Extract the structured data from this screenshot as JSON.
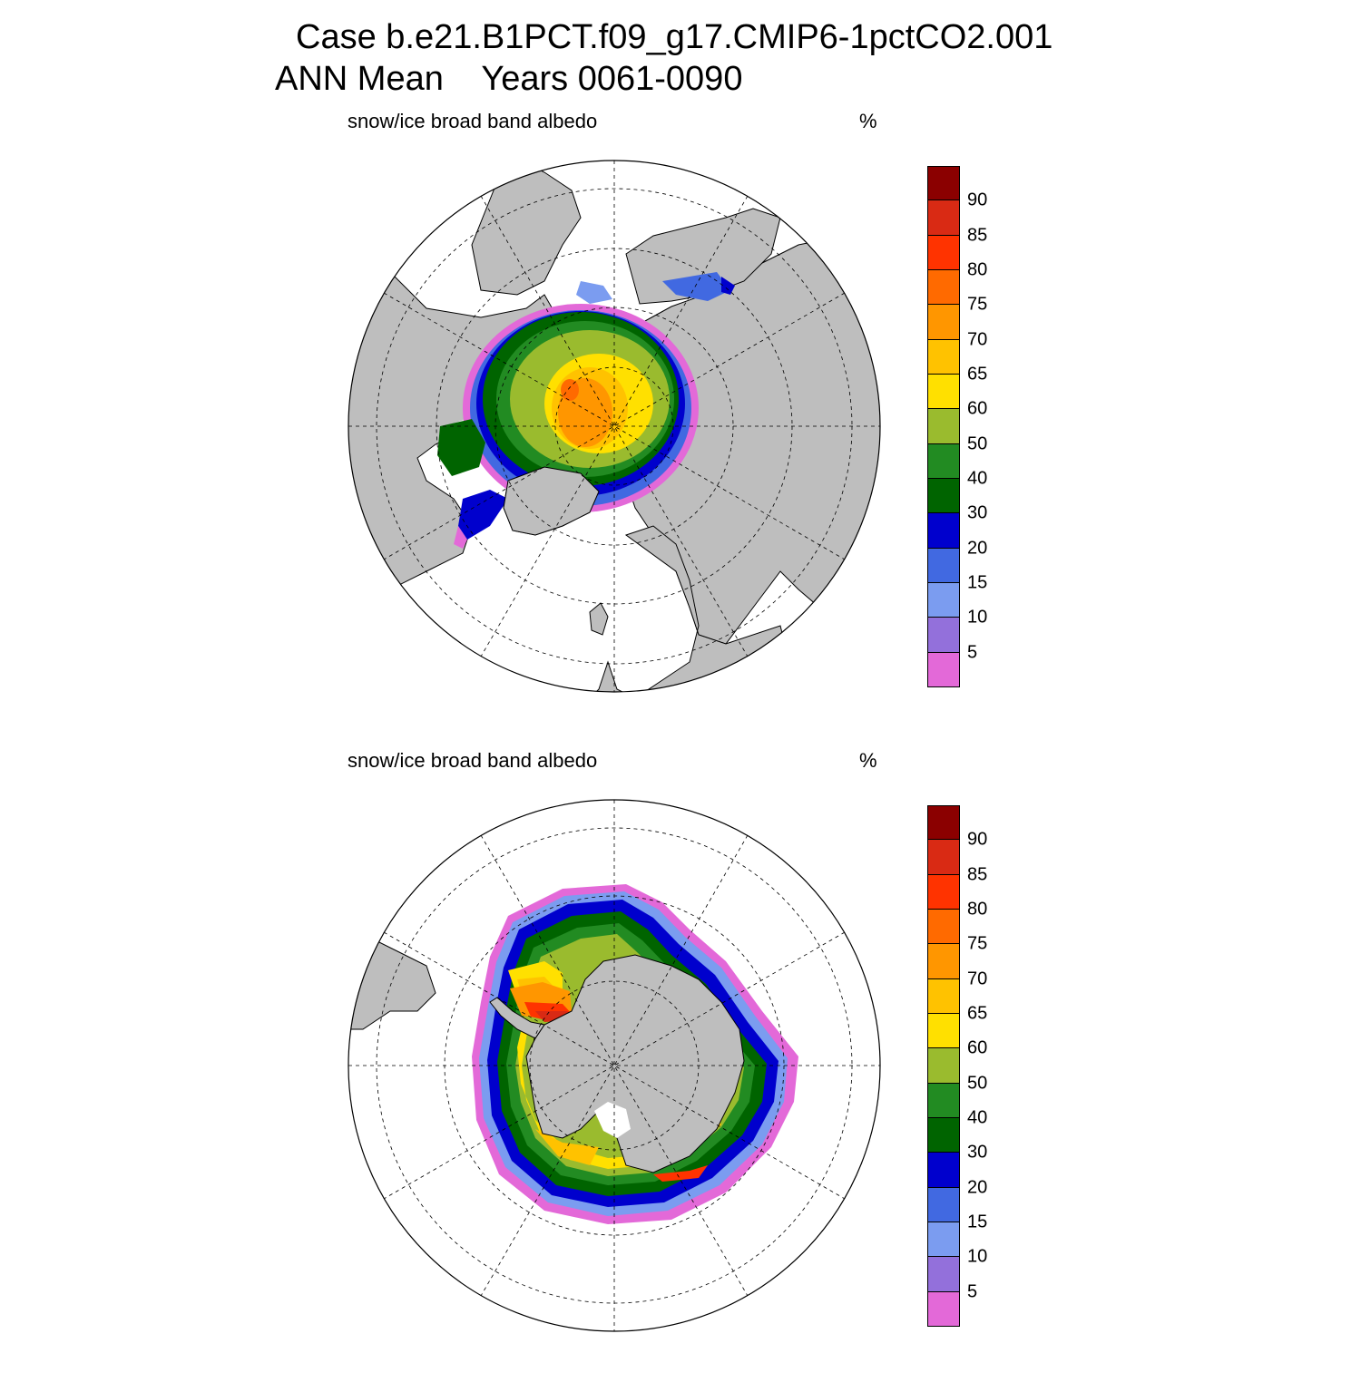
{
  "title": {
    "line1": "Case b.e21.B1PCT.f09_g17.CMIP6-1pctCO2.001",
    "line2": "ANN Mean    Years 0061-0090"
  },
  "colors": {
    "land": "#bebebe",
    "ocean": "#ffffff",
    "levels": [
      "#e369d8",
      "#9370db",
      "#7b9cf0",
      "#4169e1",
      "#0000cd",
      "#006400",
      "#228b22",
      "#9abb2e",
      "#ffe000",
      "#ffc200",
      "#ff9600",
      "#ff6a00",
      "#ff3300",
      "#d92a14",
      "#8b0000"
    ]
  },
  "colorbar": {
    "ticks": [
      "5",
      "10",
      "15",
      "20",
      "30",
      "40",
      "50",
      "60",
      "65",
      "70",
      "75",
      "80",
      "85",
      "90"
    ]
  },
  "panels": [
    {
      "hemisphere": "north",
      "label": "snow/ice broad band albedo",
      "units": "%"
    },
    {
      "hemisphere": "south",
      "label": "snow/ice broad band albedo",
      "units": "%"
    }
  ]
}
